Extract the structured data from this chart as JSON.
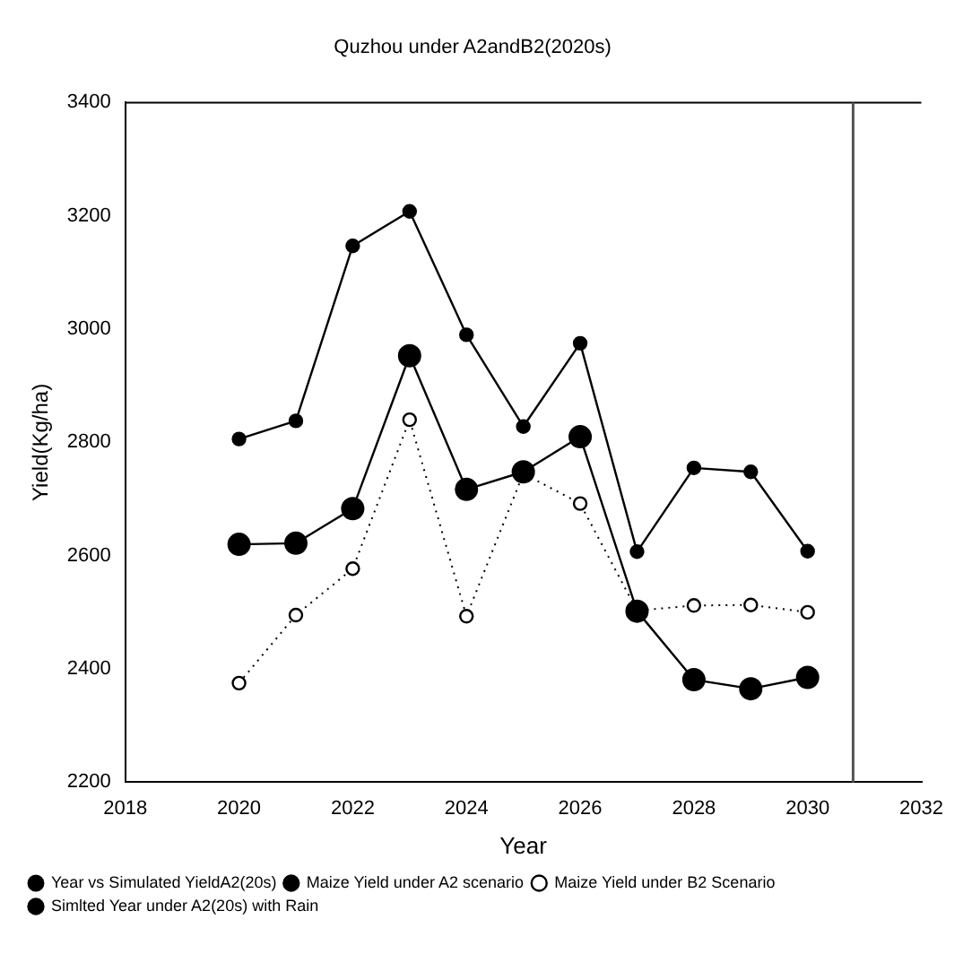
{
  "chart_data": {
    "type": "line",
    "title": "Quzhou under A2andB2(2020s)",
    "xlabel": "Year",
    "ylabel": "Yield(Kg/ha)",
    "x": [
      2020,
      2021,
      2022,
      2023,
      2024,
      2025,
      2026,
      2027,
      2028,
      2029,
      2030
    ],
    "xlim": [
      2018,
      2032
    ],
    "xticks": [
      2018,
      2020,
      2022,
      2024,
      2026,
      2028,
      2030,
      2032
    ],
    "ylim": [
      2200,
      3400
    ],
    "yticks": [
      2200,
      2400,
      2600,
      2800,
      3000,
      3200,
      3400
    ],
    "grid": false,
    "legend": "bottom left",
    "marker": "circle",
    "ref_lines": [
      {
        "axis": "x",
        "value": 2030.8,
        "color": "#555555"
      }
    ],
    "series": [
      {
        "name": "Year vs Simulated YieldA2(20s)",
        "type": "scatter",
        "color": "#000000",
        "values": [
          2620,
          2622,
          2683,
          2953,
          2717,
          2748,
          2810,
          2502,
          2381,
          2365,
          2385
        ]
      },
      {
        "name": "Maize Yield under A2 scenario",
        "color": "#000000",
        "line_style": "solid",
        "values": [
          2620,
          2622,
          2683,
          2953,
          2717,
          2748,
          2810,
          2502,
          2381,
          2365,
          2385
        ]
      },
      {
        "name": "Maize Yield under B2 Scenario",
        "color": "#000000",
        "line_style": "dotted",
        "values": [
          2375,
          2495,
          2577,
          2840,
          2493,
          2745,
          2692,
          2503,
          2512,
          2513,
          2500
        ]
      },
      {
        "name": "Simlted Year under A2(20s) with Rain",
        "color": "#000000",
        "line_style": "solid",
        "values": [
          2806,
          2838,
          3147,
          3208,
          2990,
          2828,
          2975,
          2607,
          2755,
          2748,
          2608
        ]
      }
    ]
  }
}
